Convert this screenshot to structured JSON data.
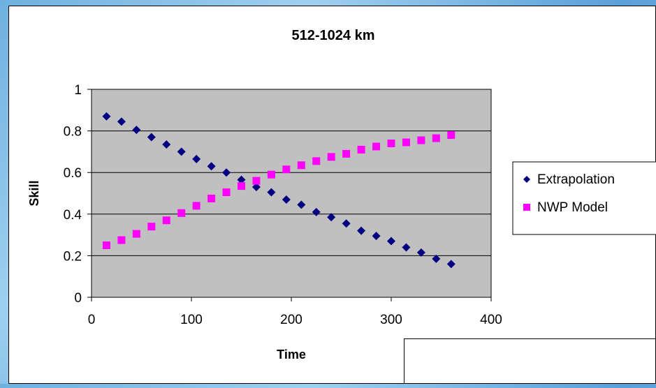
{
  "chart_data": {
    "type": "scatter",
    "title": "512-1024 km",
    "xlabel": "Time",
    "ylabel": "Skill",
    "xlim": [
      0,
      400
    ],
    "ylim": [
      0,
      1
    ],
    "xticks": [
      "0",
      "100",
      "200",
      "300",
      "400"
    ],
    "yticks": [
      "0",
      "0.2",
      "0.4",
      "0.6",
      "0.8",
      "1"
    ],
    "grid": "horizontal",
    "plot_background": "#c0c0c0",
    "legend_position": "right",
    "series": [
      {
        "name": "Extrapolation",
        "marker": "diamond",
        "color": "#000080",
        "x": [
          15,
          30,
          45,
          60,
          75,
          90,
          105,
          120,
          135,
          150,
          165,
          180,
          195,
          210,
          225,
          240,
          255,
          270,
          285,
          300,
          315,
          330,
          345,
          360
        ],
        "y": [
          0.87,
          0.845,
          0.805,
          0.77,
          0.735,
          0.7,
          0.665,
          0.63,
          0.6,
          0.565,
          0.53,
          0.505,
          0.47,
          0.445,
          0.41,
          0.385,
          0.355,
          0.32,
          0.295,
          0.27,
          0.24,
          0.215,
          0.185,
          0.16
        ]
      },
      {
        "name": "NWP Model",
        "marker": "square",
        "color": "#ff00ff",
        "x": [
          15,
          30,
          45,
          60,
          75,
          90,
          105,
          120,
          135,
          150,
          165,
          180,
          195,
          210,
          225,
          240,
          255,
          270,
          285,
          300,
          315,
          330,
          345,
          360
        ],
        "y": [
          0.25,
          0.275,
          0.305,
          0.34,
          0.37,
          0.405,
          0.44,
          0.475,
          0.505,
          0.535,
          0.56,
          0.59,
          0.615,
          0.635,
          0.655,
          0.675,
          0.69,
          0.71,
          0.725,
          0.74,
          0.745,
          0.755,
          0.765,
          0.78
        ]
      }
    ]
  }
}
